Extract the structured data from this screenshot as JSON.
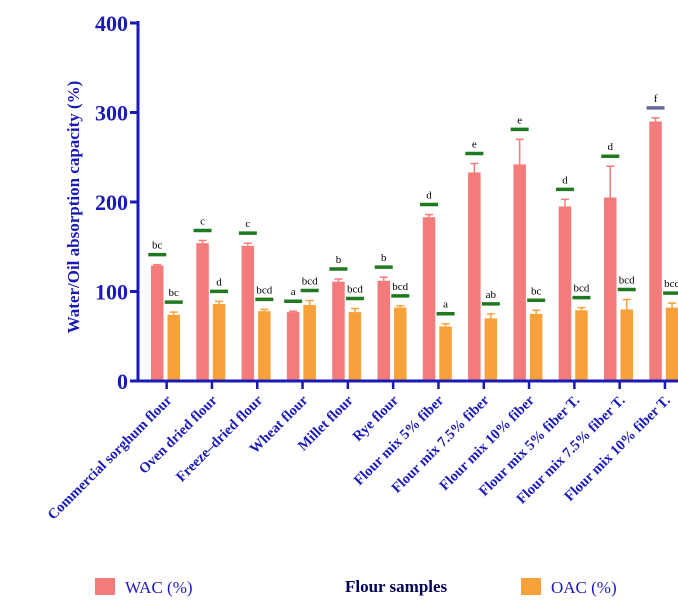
{
  "chart_data": {
    "type": "bar",
    "title": "",
    "ylabel": "Water/Oil absorption capacity (%)",
    "xlabel": "Flour samples",
    "ylim": [
      0,
      400
    ],
    "yticks": [
      0,
      100,
      200,
      300,
      400
    ],
    "categories": [
      "Commercial sorghum flour",
      "Oven dried flour",
      "Freeze–dried flour",
      "Wheat flour",
      "Millet flour",
      "Rye flour",
      "Flour mix 5% fiber",
      "Flour mix 7.5% fiber",
      "Flour mix 10% fiber",
      "Flour mix 5% fiber T.",
      "Flour mix 7.5% fiber T.",
      "Flour mix 10% fiber T."
    ],
    "series": [
      {
        "name": "WAC (%)",
        "color": "#f47b7b",
        "values": [
          129,
          154,
          151,
          77,
          111,
          112,
          183,
          233,
          242,
          195,
          205,
          290
        ],
        "errors": [
          1,
          3,
          3,
          1,
          3,
          4,
          3,
          10,
          28,
          8,
          35,
          4
        ],
        "letters": [
          "bc",
          "c",
          "c",
          "a",
          "b",
          "b",
          "d",
          "e",
          "e",
          "d",
          "d",
          "f"
        ]
      },
      {
        "name": "OAC (%)",
        "color": "#f7a13a",
        "values": [
          74,
          86,
          78,
          85,
          77,
          82,
          61,
          70,
          75,
          79,
          80,
          82
        ],
        "errors": [
          3,
          3,
          2,
          5,
          4,
          2,
          3,
          5,
          4,
          3,
          11,
          5
        ],
        "letters": [
          "bc",
          "d",
          "bcd",
          "bcd",
          "bcd",
          "bcd",
          "a",
          "ab",
          "bc",
          "bcd",
          "bcd",
          "bcd"
        ]
      }
    ],
    "significance_bar_colors": [
      "#1f7a1f",
      "#6a6a9a"
    ],
    "legend": "bottom"
  }
}
